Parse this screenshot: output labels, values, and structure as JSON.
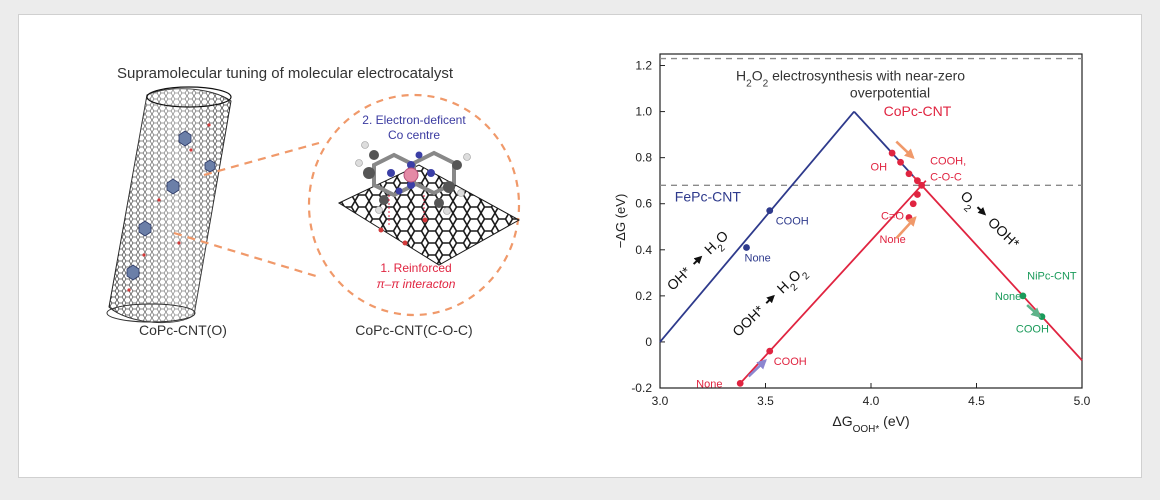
{
  "left_panel": {
    "heading": "Supramolecular tuning of molecular electrocatalyst",
    "cnt_label": "CoPc-CNT(O)",
    "sheet_label": "CoPc-CNT(C-O-C)",
    "annotation_top_line1": "2. Electron-deficent",
    "annotation_top_line2": "Co centre",
    "annotation_bottom_line1": "1. Reinforced",
    "annotation_bottom_line2": "π–π interacton"
  },
  "colors": {
    "fepc": "#2e3a8c",
    "copc": "#e02440",
    "nipc": "#1a9a5a",
    "dashed": "#8a8a8a",
    "orange": "#f0996a",
    "purple": "#8c86d0",
    "green_arrow": "#5fb38a"
  },
  "chart_data": {
    "type": "line",
    "xlabel_main": "ΔG",
    "xlabel_sub": "OOH*",
    "xlabel_unit": "(eV)",
    "ylabel": "−ΔG (eV)",
    "xlim": [
      3.0,
      5.0
    ],
    "ylim": [
      -0.2,
      1.25
    ],
    "xticks": [
      "3.0",
      "3.5",
      "4.0",
      "4.5",
      "5.0"
    ],
    "yticks": [
      "-0.2",
      "0",
      "0.2",
      "0.4",
      "0.6",
      "0.8",
      "1.0",
      "1.2"
    ],
    "xtick_values": [
      3.0,
      3.5,
      4.0,
      4.5,
      5.0
    ],
    "ytick_values": [
      -0.2,
      0,
      0.2,
      0.4,
      0.6,
      0.8,
      1.0,
      1.2
    ],
    "hlines": [
      1.23,
      0.68
    ],
    "volcano": {
      "left_branch": [
        [
          3.0,
          0.0
        ],
        [
          3.92,
          1.0
        ]
      ],
      "right_segment": [
        [
          3.92,
          1.0
        ],
        [
          4.2,
          0.72
        ]
      ],
      "ooh_branch": [
        [
          3.38,
          -0.18
        ],
        [
          4.26,
          0.7
        ]
      ],
      "o2_branch": [
        [
          4.2,
          0.72
        ],
        [
          5.0,
          -0.08
        ]
      ]
    },
    "title_line1_parts": [
      "H",
      "2",
      "O",
      "2"
    ],
    "title_line1_rest": " electrosynthesis with near-zero",
    "title_line2": "overpotential",
    "series": [
      {
        "name": "FePc-CNT",
        "points": [
          {
            "x": 3.52,
            "y": 0.57,
            "label": "COOH"
          },
          {
            "x": 3.41,
            "y": 0.41,
            "label": "None"
          }
        ]
      },
      {
        "name": "CoPc-CNT",
        "points": [
          {
            "x": 3.38,
            "y": -0.18,
            "label": "None"
          },
          {
            "x": 3.52,
            "y": -0.04,
            "label": "COOH"
          },
          {
            "x": 4.18,
            "y": 0.54,
            "label": "C=O"
          },
          {
            "x": 4.2,
            "y": 0.6,
            "label": ""
          },
          {
            "x": 4.22,
            "y": 0.64,
            "label": ""
          },
          {
            "x": 4.1,
            "y": 0.82,
            "label": ""
          },
          {
            "x": 4.14,
            "y": 0.78,
            "label": "OH"
          },
          {
            "x": 4.18,
            "y": 0.73,
            "label": ""
          },
          {
            "x": 4.22,
            "y": 0.7,
            "label": ""
          },
          {
            "x": 4.24,
            "y": 0.68,
            "label": ""
          }
        ]
      },
      {
        "name": "NiPc-CNT",
        "points": [
          {
            "x": 4.72,
            "y": 0.2,
            "label": "None"
          },
          {
            "x": 4.81,
            "y": 0.11,
            "label": "COOH"
          }
        ]
      }
    ],
    "branch_labels": {
      "oh_to_h2o": [
        "OH*",
        "H",
        "2",
        "O"
      ],
      "ooh_to_h2o2": [
        "OOH*",
        "H",
        "2",
        "O",
        "2"
      ],
      "o2_to_ooh": [
        "O",
        "2",
        "OOH*"
      ]
    },
    "copc_right_labels": [
      "COOH,",
      "C-O-C"
    ],
    "copc_none_label": "None"
  }
}
